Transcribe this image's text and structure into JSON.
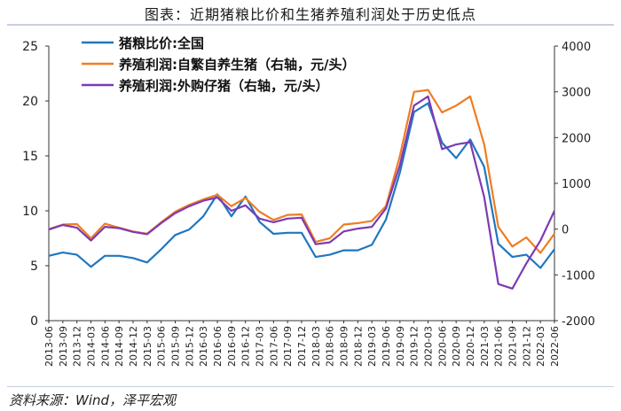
{
  "title": "图表：近期猪粮比价和生猪养殖利润处于历史低点",
  "source": "资料来源：Wind，泽平宏观",
  "chart_data": {
    "type": "line",
    "left_axis": {
      "min": 0,
      "max": 25,
      "ticks": [
        0,
        5,
        10,
        15,
        20,
        25
      ]
    },
    "right_axis": {
      "min": -2000,
      "max": 4000,
      "ticks": [
        -2000,
        -1000,
        0,
        1000,
        2000,
        3000,
        4000
      ]
    },
    "categories": [
      "2013-06",
      "2013-09",
      "2013-12",
      "2014-03",
      "2014-06",
      "2014-09",
      "2014-12",
      "2015-03",
      "2015-06",
      "2015-09",
      "2015-12",
      "2016-03",
      "2016-06",
      "2016-09",
      "2016-12",
      "2017-03",
      "2017-06",
      "2017-09",
      "2017-12",
      "2018-03",
      "2018-06",
      "2018-09",
      "2018-12",
      "2019-03",
      "2019-06",
      "2019-09",
      "2019-12",
      "2020-03",
      "2020-06",
      "2020-09",
      "2020-12",
      "2021-03",
      "2021-06",
      "2021-09",
      "2021-12",
      "2022-03",
      "2022-06"
    ],
    "series": [
      {
        "name": "猪粮比价:全国",
        "axis": "left",
        "color": "#1f77c0",
        "values": [
          5.9,
          6.2,
          6.0,
          4.9,
          5.9,
          5.9,
          5.7,
          5.3,
          6.5,
          7.8,
          8.3,
          9.5,
          11.5,
          9.5,
          11.3,
          9.0,
          7.9,
          8.0,
          8.0,
          5.8,
          6.0,
          6.4,
          6.4,
          6.9,
          9.2,
          13.5,
          19.0,
          19.8,
          16.2,
          14.8,
          16.5,
          14.0,
          7.0,
          5.8,
          6.0,
          4.8,
          6.5
        ]
      },
      {
        "name": "养殖利润:自繁自养生猪（右轴，元/头）",
        "axis": "right",
        "color": "#ef7d22",
        "values": [
          0,
          100,
          110,
          -200,
          120,
          30,
          -50,
          -100,
          150,
          380,
          530,
          650,
          750,
          500,
          680,
          380,
          200,
          310,
          320,
          -280,
          -200,
          100,
          130,
          180,
          500,
          1600,
          3000,
          3040,
          2550,
          2700,
          2900,
          1850,
          50,
          -380,
          -180,
          -520,
          -100
        ]
      },
      {
        "name": "养殖利润:外购仔猪（右轴，元/头）",
        "axis": "right",
        "color": "#7d3ab5",
        "values": [
          -10,
          90,
          30,
          -250,
          50,
          20,
          -60,
          -110,
          130,
          350,
          500,
          620,
          690,
          400,
          520,
          230,
          150,
          230,
          250,
          -330,
          -290,
          -50,
          10,
          50,
          450,
          1400,
          2700,
          2900,
          1750,
          1850,
          1900,
          700,
          -1200,
          -1300,
          -750,
          -250,
          400
        ]
      }
    ]
  }
}
